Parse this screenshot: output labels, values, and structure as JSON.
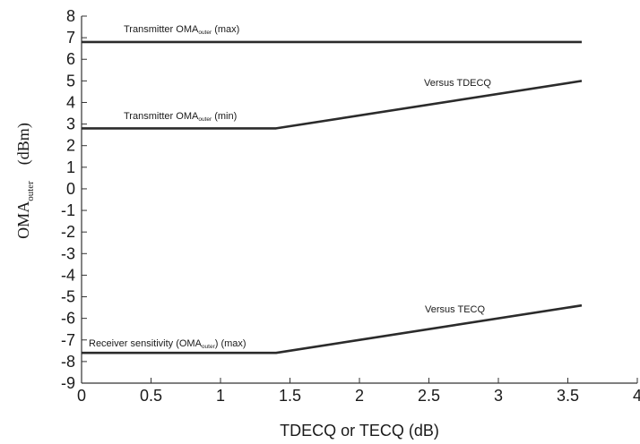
{
  "chart_data": {
    "type": "line",
    "xlabel": "TDECQ or TECQ (dB)",
    "ylabel": {
      "main": "OMA",
      "sub": "outer",
      "unit": "(dBm)"
    },
    "xlim": [
      0,
      4
    ],
    "ylim": [
      -9,
      8
    ],
    "xticks": [
      "0",
      "0.5",
      "1",
      "1.5",
      "2",
      "2.5",
      "3",
      "3.5",
      "4"
    ],
    "yticks": [
      "8",
      "7",
      "6",
      "5",
      "4",
      "3",
      "2",
      "1",
      "0",
      "-1",
      "-2",
      "-3",
      "-4",
      "-5",
      "-6",
      "-7",
      "-8",
      "-9"
    ],
    "grid": false,
    "line_color": "#2b2b2b",
    "series": [
      {
        "x": [
          0,
          3.6
        ],
        "y": [
          6.8,
          6.8
        ]
      },
      {
        "x": [
          0,
          1.4,
          3.6
        ],
        "y": [
          2.8,
          2.8,
          5.0
        ]
      },
      {
        "x": [
          0,
          1.4,
          3.6
        ],
        "y": [
          -7.6,
          -7.6,
          -5.4
        ]
      }
    ],
    "annotations": [
      {
        "text": "Transmitter OMA",
        "sub": "outer",
        "after": " (max)"
      },
      {
        "text": "Transmitter OMA",
        "sub": "outer",
        "after": " (min)"
      },
      {
        "text": "Versus TDECQ",
        "sub": "",
        "after": ""
      },
      {
        "text": "Versus TECQ",
        "sub": "",
        "after": ""
      },
      {
        "text": "Receiver sensitivity  (OMA",
        "sub": "outer",
        "after": ") (max)"
      }
    ]
  }
}
